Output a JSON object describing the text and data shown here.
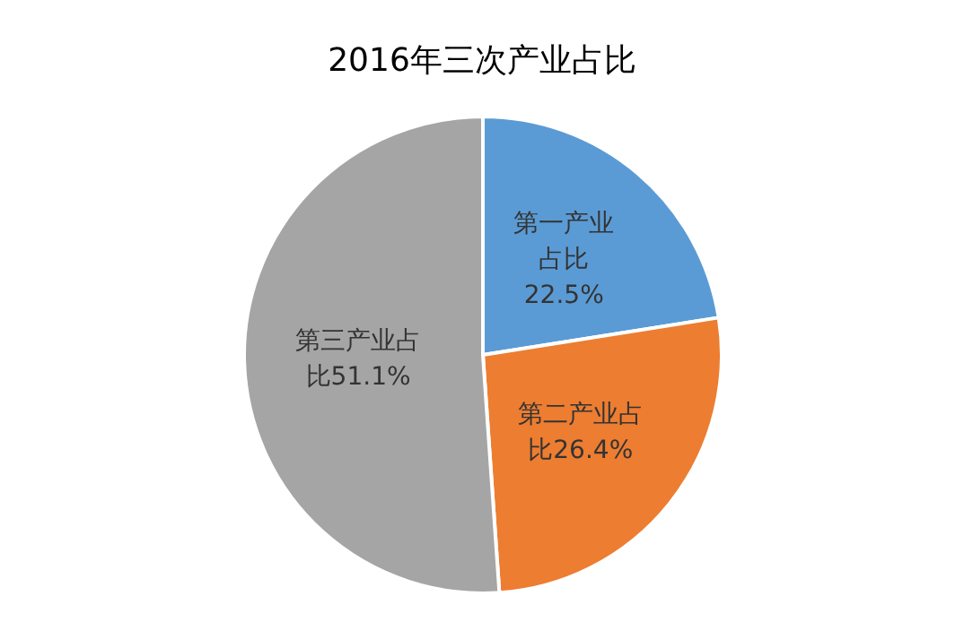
{
  "chart_data": {
    "type": "pie",
    "title": "2016年三次产业占比",
    "categories": [
      "第一产业占比22.5%",
      "第二产业占比26.4%",
      "第三产业占比51.1%"
    ],
    "values": [
      22.5,
      26.4,
      51.1
    ],
    "colors": [
      "#5b9bd5",
      "#ed7d31",
      "#a5a5a5"
    ],
    "legend": false
  }
}
